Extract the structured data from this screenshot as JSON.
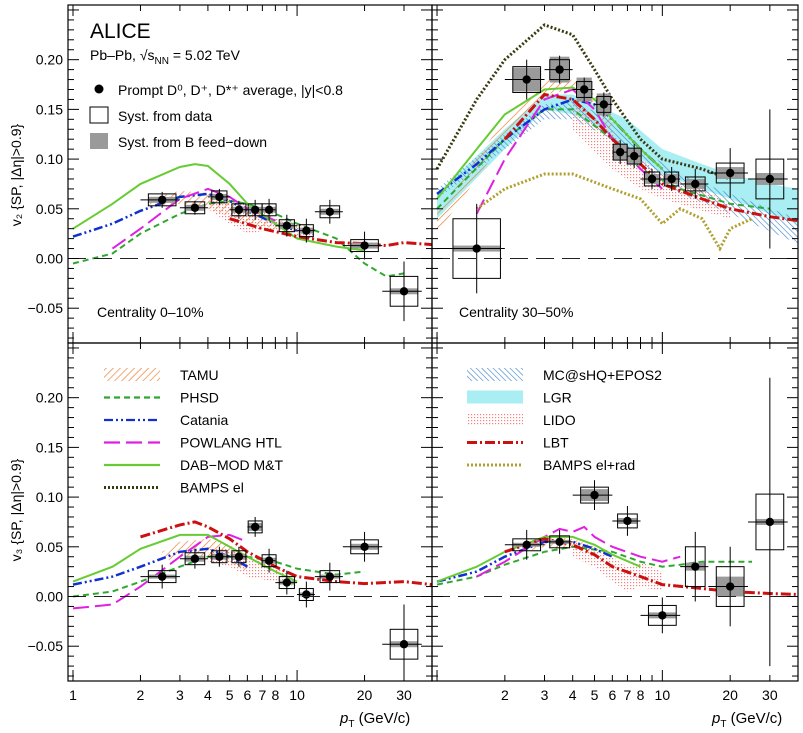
{
  "chart_data": {
    "type": "scatter",
    "experiment": "ALICE",
    "system_label": "Pb–Pb, √s",
    "system_sub": "NN",
    "system_energy": " = 5.02 TeV",
    "data_label": "Prompt D⁰, D⁺, D*⁺ average, |y|<0.8",
    "syst_data_label": "Syst. from data",
    "syst_b_label": "Syst. from B feed−down",
    "xlabel_main": "p",
    "xlabel_sub": "T",
    "xlabel_unit": " (GeV/c)",
    "ylabel_v2": "v₂ {SP, |Δη|>0.9}",
    "ylabel_v3": "v₃ {SP, |Δη|>0.9}",
    "x_scale": "log",
    "xlim": [
      0.95,
      40
    ],
    "ylim": [
      -0.085,
      0.255
    ],
    "x_ticks": [
      1,
      2,
      3,
      4,
      5,
      6,
      7,
      8,
      10,
      20,
      30
    ],
    "x_ticklabels": [
      "1",
      "2",
      "3",
      "4",
      "5",
      "6",
      "7",
      "8",
      "10",
      "20",
      "30"
    ],
    "y_ticks": [
      -0.05,
      0,
      0.05,
      0.1,
      0.15,
      0.2
    ],
    "y_ticklabels": [
      "−0.05",
      "0.00",
      "0.05",
      "0.10",
      "0.15",
      "0.20"
    ],
    "centrality_labels": [
      "Centrality 0–10%",
      "Centrality 30–50%"
    ],
    "models_left": [
      {
        "name": "TAMU",
        "color": "#e8823a",
        "style": "hatched-band"
      },
      {
        "name": "PHSD",
        "color": "#2fa82f",
        "style": "dashed"
      },
      {
        "name": "Catania",
        "color": "#1030d0",
        "style": "dash-dot-dot"
      },
      {
        "name": "POWLANG HTL",
        "color": "#e020e0",
        "style": "long-dash"
      },
      {
        "name": "DAB−MOD M&T",
        "color": "#66cc33",
        "style": "solid"
      },
      {
        "name": "BAMPS el",
        "color": "#3a3a10",
        "style": "dotted"
      }
    ],
    "models_right": [
      {
        "name": "MC@sHQ+EPOS2",
        "color": "#3a80c8",
        "style": "hatched-band"
      },
      {
        "name": "LGR",
        "color": "#a8eef2",
        "style": "filled-band"
      },
      {
        "name": "LIDO",
        "color": "#f08080",
        "style": "dotted-band"
      },
      {
        "name": "LBT",
        "color": "#cc1010",
        "style": "dash-dot"
      },
      {
        "name": "BAMPS el+rad",
        "color": "#b0a030",
        "style": "dotted"
      }
    ],
    "panels": [
      {
        "observable": "v2",
        "centrality": "0-10%",
        "points": [
          {
            "x": 2.5,
            "y": 0.059,
            "xerr": [
              2,
              3
            ],
            "yerr": 0.008,
            "sys": 0.006,
            "fd": 0.003
          },
          {
            "x": 3.5,
            "y": 0.051,
            "xerr": [
              3,
              4
            ],
            "yerr": 0.007,
            "sys": 0.006,
            "fd": 0.003
          },
          {
            "x": 4.5,
            "y": 0.062,
            "xerr": [
              4,
              5
            ],
            "yerr": 0.008,
            "sys": 0.006,
            "fd": 0.003
          },
          {
            "x": 5.5,
            "y": 0.049,
            "xerr": [
              5,
              6
            ],
            "yerr": 0.009,
            "sys": 0.006,
            "fd": 0.003
          },
          {
            "x": 6.5,
            "y": 0.049,
            "xerr": [
              6,
              7
            ],
            "yerr": 0.01,
            "sys": 0.006,
            "fd": 0.003
          },
          {
            "x": 7.5,
            "y": 0.049,
            "xerr": [
              7,
              8
            ],
            "yerr": 0.011,
            "sys": 0.006,
            "fd": 0.003
          },
          {
            "x": 9.0,
            "y": 0.033,
            "xerr": [
              8,
              10
            ],
            "yerr": 0.011,
            "sys": 0.006,
            "fd": 0.003
          },
          {
            "x": 11.0,
            "y": 0.028,
            "xerr": [
              10,
              12
            ],
            "yerr": 0.012,
            "sys": 0.006,
            "fd": 0.003
          },
          {
            "x": 14.0,
            "y": 0.047,
            "xerr": [
              12,
              16
            ],
            "yerr": 0.012,
            "sys": 0.006,
            "fd": 0.003
          },
          {
            "x": 20.0,
            "y": 0.013,
            "xerr": [
              16,
              24
            ],
            "yerr": 0.014,
            "sys": 0.006,
            "fd": 0.003
          },
          {
            "x": 30.0,
            "y": -0.033,
            "xerr": [
              24,
              36
            ],
            "yerr": 0.03,
            "sys": 0.015,
            "fd": 0.003
          }
        ]
      },
      {
        "observable": "v2",
        "centrality": "30-50%",
        "points": [
          {
            "x": 1.5,
            "y": 0.01,
            "xerr": [
              1,
              2
            ],
            "yerr": 0.045,
            "sys": 0.03,
            "fd": 0.003
          },
          {
            "x": 2.5,
            "y": 0.18,
            "xerr": [
              2,
              3
            ],
            "yerr": 0.02,
            "sys": 0.013,
            "fd": 0.012
          },
          {
            "x": 3.5,
            "y": 0.19,
            "xerr": [
              3,
              4
            ],
            "yerr": 0.014,
            "sys": 0.01,
            "fd": 0.013
          },
          {
            "x": 4.5,
            "y": 0.17,
            "xerr": [
              4,
              5
            ],
            "yerr": 0.012,
            "sys": 0.008,
            "fd": 0.012
          },
          {
            "x": 5.5,
            "y": 0.155,
            "xerr": [
              5,
              6
            ],
            "yerr": 0.012,
            "sys": 0.008,
            "fd": 0.011
          },
          {
            "x": 6.5,
            "y": 0.107,
            "xerr": [
              6,
              7
            ],
            "yerr": 0.012,
            "sys": 0.008,
            "fd": 0.008
          },
          {
            "x": 7.5,
            "y": 0.103,
            "xerr": [
              7,
              8
            ],
            "yerr": 0.012,
            "sys": 0.008,
            "fd": 0.008
          },
          {
            "x": 9.0,
            "y": 0.08,
            "xerr": [
              8,
              10
            ],
            "yerr": 0.01,
            "sys": 0.007,
            "fd": 0.005
          },
          {
            "x": 11.0,
            "y": 0.08,
            "xerr": [
              10,
              12
            ],
            "yerr": 0.012,
            "sys": 0.007,
            "fd": 0.005
          },
          {
            "x": 14.0,
            "y": 0.075,
            "xerr": [
              12,
              16
            ],
            "yerr": 0.015,
            "sys": 0.007,
            "fd": 0.005
          },
          {
            "x": 20.0,
            "y": 0.086,
            "xerr": [
              16,
              24
            ],
            "yerr": 0.025,
            "sys": 0.01,
            "fd": 0.006
          },
          {
            "x": 30.0,
            "y": 0.08,
            "xerr": [
              24,
              36
            ],
            "yerr": 0.07,
            "sys": 0.02,
            "fd": 0.006
          }
        ]
      },
      {
        "observable": "v3",
        "centrality": "0-10%",
        "points": [
          {
            "x": 2.5,
            "y": 0.02,
            "xerr": [
              2,
              3
            ],
            "yerr": 0.012,
            "sys": 0.006,
            "fd": 0.002
          },
          {
            "x": 3.5,
            "y": 0.038,
            "xerr": [
              3,
              4
            ],
            "yerr": 0.01,
            "sys": 0.006,
            "fd": 0.003
          },
          {
            "x": 4.5,
            "y": 0.04,
            "xerr": [
              4,
              5
            ],
            "yerr": 0.01,
            "sys": 0.006,
            "fd": 0.003
          },
          {
            "x": 5.5,
            "y": 0.04,
            "xerr": [
              5,
              6
            ],
            "yerr": 0.01,
            "sys": 0.006,
            "fd": 0.003
          },
          {
            "x": 6.5,
            "y": 0.07,
            "xerr": [
              6,
              7
            ],
            "yerr": 0.01,
            "sys": 0.006,
            "fd": 0.004
          },
          {
            "x": 7.5,
            "y": 0.036,
            "xerr": [
              7,
              8
            ],
            "yerr": 0.012,
            "sys": 0.006,
            "fd": 0.003
          },
          {
            "x": 9.0,
            "y": 0.014,
            "xerr": [
              8,
              10
            ],
            "yerr": 0.012,
            "sys": 0.006,
            "fd": 0.002
          },
          {
            "x": 11.0,
            "y": 0.002,
            "xerr": [
              10,
              12
            ],
            "yerr": 0.013,
            "sys": 0.006,
            "fd": 0.002
          },
          {
            "x": 14.0,
            "y": 0.02,
            "xerr": [
              12,
              16
            ],
            "yerr": 0.014,
            "sys": 0.006,
            "fd": 0.002
          },
          {
            "x": 20.0,
            "y": 0.05,
            "xerr": [
              16,
              24
            ],
            "yerr": 0.015,
            "sys": 0.007,
            "fd": 0.003
          },
          {
            "x": 30.0,
            "y": -0.048,
            "xerr": [
              24,
              36
            ],
            "yerr": 0.04,
            "sys": 0.015,
            "fd": 0.003
          }
        ]
      },
      {
        "observable": "v3",
        "centrality": "30-50%",
        "points": [
          {
            "x": 2.5,
            "y": 0.052,
            "xerr": [
              2,
              3
            ],
            "yerr": 0.015,
            "sys": 0.006,
            "fd": 0.002
          },
          {
            "x": 3.5,
            "y": 0.055,
            "xerr": [
              3,
              4
            ],
            "yerr": 0.012,
            "sys": 0.006,
            "fd": 0.002
          },
          {
            "x": 5.0,
            "y": 0.102,
            "xerr": [
              4,
              6
            ],
            "yerr": 0.015,
            "sys": 0.008,
            "fd": 0.006
          },
          {
            "x": 7.0,
            "y": 0.076,
            "xerr": [
              6,
              8
            ],
            "yerr": 0.015,
            "sys": 0.007,
            "fd": 0.003
          },
          {
            "x": 10.0,
            "y": -0.019,
            "xerr": [
              8,
              12
            ],
            "yerr": 0.018,
            "sys": 0.01,
            "fd": 0.003
          },
          {
            "x": 14.0,
            "y": 0.03,
            "xerr": [
              12,
              16
            ],
            "yerr": 0.035,
            "sys": 0.02,
            "fd": 0.004
          },
          {
            "x": 20.0,
            "y": 0.01,
            "xerr": [
              16,
              24
            ],
            "yerr": 0.04,
            "sys": 0.02,
            "fd": 0.01
          },
          {
            "x": 30.0,
            "y": 0.075,
            "xerr": [
              24,
              36
            ],
            "yerr": 0.145,
            "sys": 0.028,
            "fd": 0.003
          }
        ]
      }
    ]
  }
}
